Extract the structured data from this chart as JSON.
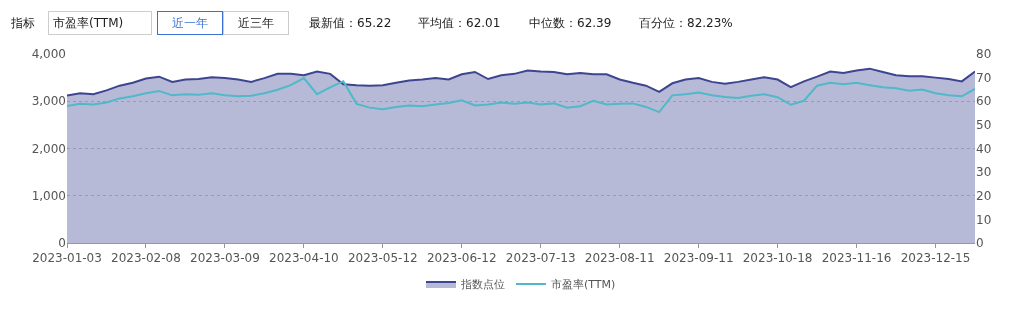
{
  "chart_data": {
    "type": "area",
    "annotations": [
      "指标",
      "市盈率(TTM)",
      "近一年",
      "近三年",
      "最新值：65.22",
      "平均值：62.01",
      "中位数：62.39",
      "百分位：82.23%"
    ],
    "categories": [
      "2023-01-03",
      null,
      null,
      null,
      null,
      null,
      "2023-02-08",
      null,
      null,
      null,
      null,
      null,
      "2023-03-09",
      null,
      null,
      null,
      null,
      null,
      "2023-04-10",
      null,
      null,
      null,
      null,
      null,
      "2023-05-12",
      null,
      null,
      null,
      null,
      null,
      "2023-06-12",
      null,
      null,
      null,
      null,
      null,
      "2023-07-13",
      null,
      null,
      null,
      null,
      null,
      "2023-08-11",
      null,
      null,
      null,
      null,
      null,
      "2023-09-11",
      null,
      null,
      null,
      null,
      null,
      "2023-10-18",
      null,
      null,
      null,
      null,
      null,
      "2023-11-16",
      null,
      null,
      null,
      null,
      null,
      "2023-12-15",
      null,
      null,
      null
    ],
    "series": [
      {
        "name": "指数点位",
        "color": "#3d4590",
        "values": [
          3120,
          3170,
          3150,
          3230,
          3330,
          3390,
          3480,
          3520,
          3410,
          3460,
          3470,
          3510,
          3490,
          3460,
          3410,
          3490,
          3580,
          3580,
          3550,
          3630,
          3580,
          3360,
          3340,
          3330,
          3340,
          3390,
          3440,
          3460,
          3490,
          3460,
          3570,
          3620,
          3470,
          3550,
          3580,
          3650,
          3630,
          3620,
          3570,
          3600,
          3570,
          3570,
          3460,
          3390,
          3330,
          3200,
          3380,
          3460,
          3490,
          3410,
          3370,
          3410,
          3460,
          3510,
          3460,
          3300,
          3420,
          3520,
          3630,
          3600,
          3650,
          3690,
          3620,
          3550,
          3530,
          3530,
          3500,
          3470,
          3420,
          3630
        ]
      },
      {
        "name": "市盈率(TTM)",
        "type": "line",
        "axis": "y2",
        "color": "#4fb8c9",
        "values": [
          58.0,
          58.9,
          58.6,
          59.5,
          61.2,
          62.1,
          63.4,
          64.3,
          62.5,
          63.0,
          62.7,
          63.4,
          62.5,
          62.1,
          62.3,
          63.4,
          64.9,
          66.8,
          69.8,
          63.0,
          65.9,
          68.5,
          58.9,
          57.3,
          56.6,
          57.6,
          58.2,
          57.9,
          58.6,
          59.3,
          60.4,
          58.2,
          58.6,
          59.5,
          58.9,
          59.5,
          58.6,
          59.1,
          57.3,
          57.9,
          60.2,
          58.6,
          58.9,
          59.1,
          57.6,
          55.4,
          62.5,
          63.0,
          63.7,
          62.5,
          61.8,
          61.4,
          62.3,
          63.0,
          61.7,
          58.5,
          60.2,
          66.6,
          67.8,
          67.2,
          67.8,
          66.8,
          65.9,
          65.5,
          64.4,
          65.0,
          63.4,
          62.5,
          62.1,
          65.2
        ]
      }
    ],
    "ylim": [
      0,
      4000
    ],
    "yticks": [
      0,
      {
        "value": 1000,
        "label": "1,000"
      },
      {
        "value": 2000,
        "label": "2,000"
      },
      {
        "value": 3000,
        "label": "3,000"
      },
      {
        "value": 4000,
        "label": "4,000"
      }
    ],
    "y2lim": [
      0,
      80
    ],
    "y2ticks": [
      0,
      10,
      20,
      30,
      40,
      50,
      60,
      70,
      80
    ],
    "grid": "y",
    "legend": "bottom",
    "marker": "none",
    "line_style": "solid"
  }
}
